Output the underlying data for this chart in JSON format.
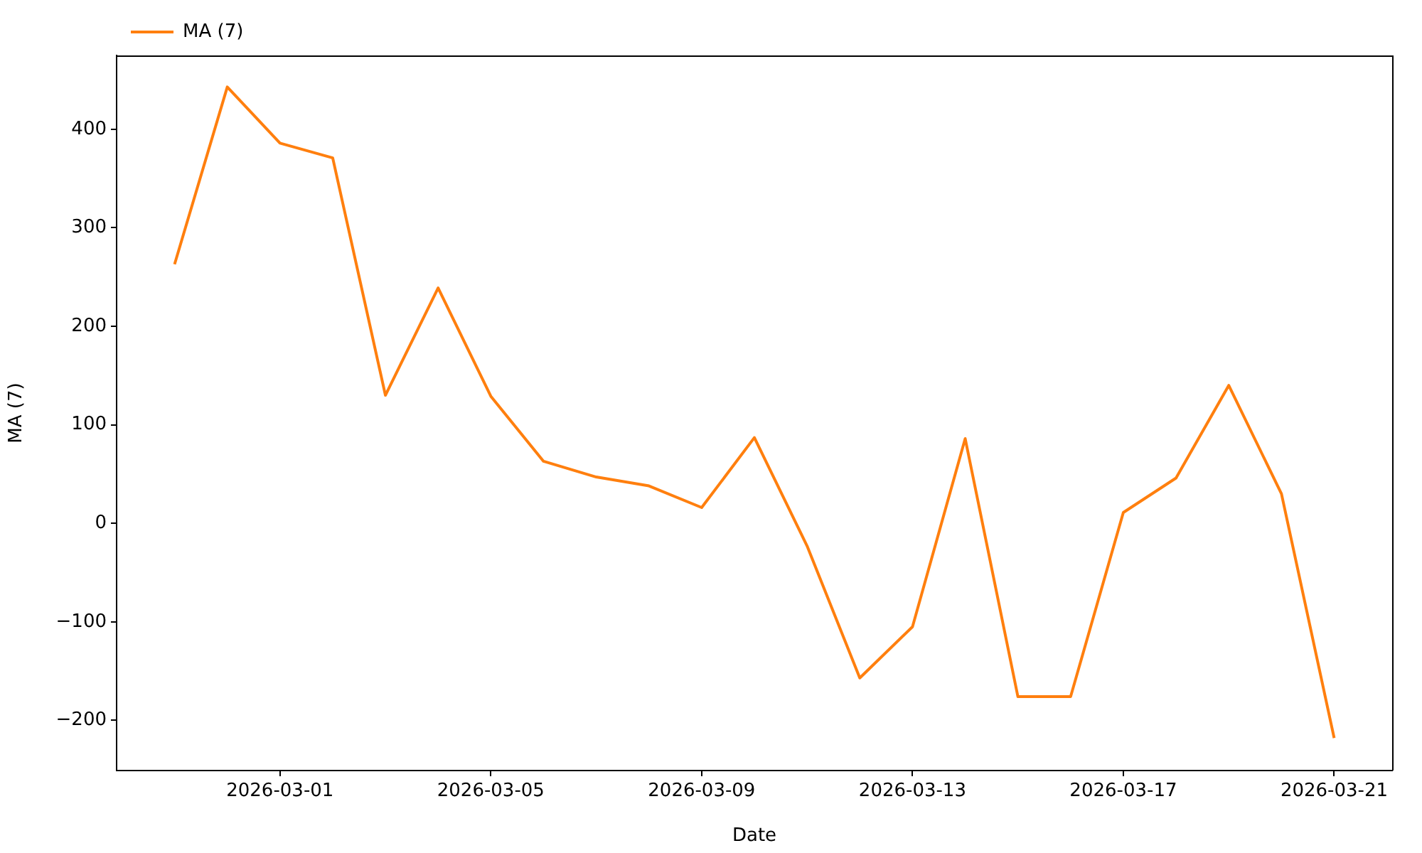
{
  "chart_data": {
    "type": "line",
    "xlabel": "Date",
    "ylabel": "MA (7)",
    "x": [
      "2026-02-27",
      "2026-02-28",
      "2026-03-01",
      "2026-03-02",
      "2026-03-03",
      "2026-03-04",
      "2026-03-05",
      "2026-03-06",
      "2026-03-07",
      "2026-03-08",
      "2026-03-09",
      "2026-03-10",
      "2026-03-11",
      "2026-03-12",
      "2026-03-13",
      "2026-03-14",
      "2026-03-15",
      "2026-03-16",
      "2026-03-17",
      "2026-03-18",
      "2026-03-19",
      "2026-03-20",
      "2026-03-21"
    ],
    "series": [
      {
        "name": "MA (7)",
        "color": "#ff7f0e",
        "values": [
          263,
          443,
          386,
          371,
          130,
          239,
          129,
          63,
          47,
          38,
          16,
          87,
          -23,
          -157,
          -105,
          86,
          -176,
          -176,
          11,
          46,
          140,
          30,
          -218
        ]
      }
    ],
    "xlim": [
      "2026-02-25T21:36",
      "2026-03-22T02:24"
    ],
    "ylim": [
      -251,
      475
    ],
    "xticks": [
      "2026-03-01",
      "2026-03-05",
      "2026-03-09",
      "2026-03-13",
      "2026-03-17",
      "2026-03-21"
    ],
    "yticks": [
      -200,
      -100,
      0,
      100,
      200,
      300,
      400
    ],
    "grid": false,
    "legend": "top left",
    "marker": "none",
    "line_style": "solid"
  }
}
